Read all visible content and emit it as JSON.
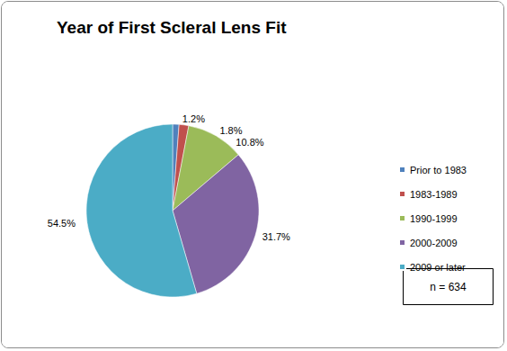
{
  "chart_data": {
    "type": "pie",
    "title": "Year of First Scleral Lens Fit",
    "categories": [
      "Prior to 1983",
      "1983-1989",
      "1990-1999",
      "2000-2009",
      "2009 or later"
    ],
    "values": [
      1.2,
      1.8,
      10.8,
      31.7,
      54.5
    ],
    "value_labels": [
      "1.2%",
      "1.8%",
      "10.8%",
      "31.7%",
      "54.5%"
    ],
    "colors": [
      "#4f81bd",
      "#c0504d",
      "#9bbb59",
      "#8064a2",
      "#4bacc6"
    ],
    "data_labels": true,
    "legend": "right",
    "annotations": [
      "n = 634"
    ]
  }
}
